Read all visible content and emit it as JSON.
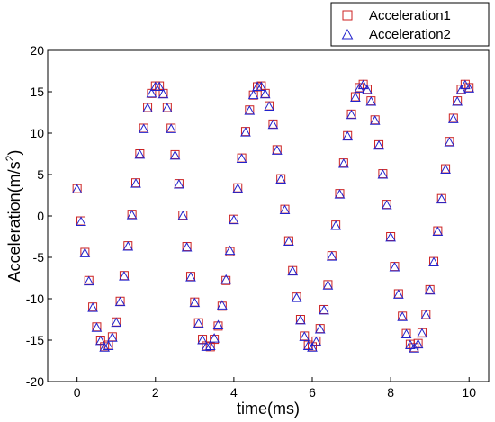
{
  "chart_data": {
    "type": "scatter",
    "title": "",
    "xlabel": "time(ms)",
    "ylabel_base": "Acceleration(m/s",
    "ylabel_sup": "2",
    "ylabel_close": ")",
    "xlim": [
      -0.75,
      10.5
    ],
    "ylim": [
      -20,
      20
    ],
    "xticks": [
      0,
      2,
      4,
      6,
      8,
      10
    ],
    "yticks": [
      -20,
      -15,
      -10,
      -5,
      0,
      5,
      10,
      15,
      20
    ],
    "grid": false,
    "legend_position": "top-right",
    "series": [
      {
        "name": "Acceleration1",
        "marker": "square",
        "color": "#cc2222",
        "x": [
          0.0,
          0.1,
          0.2,
          0.3,
          0.4,
          0.5,
          0.6,
          0.7,
          0.8,
          0.9,
          1.0,
          1.1,
          1.2,
          1.3,
          1.4,
          1.5,
          1.6,
          1.7,
          1.8,
          1.9,
          2.0,
          2.1,
          2.2,
          2.3,
          2.4,
          2.5,
          2.6,
          2.7,
          2.8,
          2.9,
          3.0,
          3.1,
          3.2,
          3.3,
          3.4,
          3.5,
          3.6,
          3.7,
          3.8,
          3.9,
          4.0,
          4.1,
          4.2,
          4.3,
          4.4,
          4.5,
          4.6,
          4.7,
          4.8,
          4.9,
          5.0,
          5.1,
          5.2,
          5.3,
          5.4,
          5.5,
          5.6,
          5.7,
          5.8,
          5.9,
          6.0,
          6.1,
          6.2,
          6.3,
          6.4,
          6.5,
          6.6,
          6.7,
          6.8,
          6.9,
          7.0,
          7.1,
          7.2,
          7.3,
          7.4,
          7.5,
          7.6,
          7.7,
          7.8,
          7.9,
          8.0,
          8.1,
          8.2,
          8.3,
          8.4,
          8.5,
          8.6,
          8.7,
          8.8,
          8.9,
          9.0,
          9.1,
          9.2,
          9.3,
          9.4,
          9.5,
          9.6,
          9.7,
          9.8,
          9.9,
          10.0
        ],
        "y": [
          3.3,
          -0.6,
          -4.4,
          -7.8,
          -11.0,
          -13.4,
          -15.0,
          -15.8,
          -15.6,
          -14.6,
          -12.8,
          -10.3,
          -7.2,
          -3.6,
          0.2,
          4.0,
          7.5,
          10.6,
          13.1,
          14.8,
          15.7,
          15.7,
          14.8,
          13.1,
          10.6,
          7.4,
          3.9,
          0.1,
          -3.7,
          -7.3,
          -10.4,
          -12.9,
          -14.9,
          -15.7,
          -15.8,
          -14.9,
          -13.3,
          -10.9,
          -7.8,
          -4.3,
          -0.4,
          3.4,
          7.0,
          10.2,
          12.8,
          14.6,
          15.6,
          15.7,
          14.8,
          13.3,
          11.1,
          8.0,
          4.5,
          0.8,
          -3.0,
          -6.6,
          -9.8,
          -12.5,
          -14.5,
          -15.6,
          -15.8,
          -15.1,
          -13.6,
          -11.3,
          -8.3,
          -4.8,
          -1.1,
          2.7,
          6.4,
          9.7,
          12.3,
          14.4,
          15.5,
          15.9,
          15.3,
          13.9,
          11.6,
          8.6,
          5.1,
          1.4,
          -2.5,
          -6.1,
          -9.4,
          -12.1,
          -14.2,
          -15.5,
          -15.9,
          -15.4,
          -14.1,
          -11.9,
          -8.9,
          -5.5,
          -1.8,
          2.1,
          5.7,
          9.0,
          11.8,
          13.9,
          15.3,
          15.9,
          15.5
        ]
      },
      {
        "name": "Acceleration2",
        "marker": "triangle",
        "color": "#2222cc",
        "x": [
          0.0,
          0.1,
          0.2,
          0.3,
          0.4,
          0.5,
          0.6,
          0.7,
          0.8,
          0.9,
          1.0,
          1.1,
          1.2,
          1.3,
          1.4,
          1.5,
          1.6,
          1.7,
          1.8,
          1.9,
          2.0,
          2.1,
          2.2,
          2.3,
          2.4,
          2.5,
          2.6,
          2.7,
          2.8,
          2.9,
          3.0,
          3.1,
          3.2,
          3.3,
          3.4,
          3.5,
          3.6,
          3.7,
          3.8,
          3.9,
          4.0,
          4.1,
          4.2,
          4.3,
          4.4,
          4.5,
          4.6,
          4.7,
          4.8,
          4.9,
          5.0,
          5.1,
          5.2,
          5.3,
          5.4,
          5.5,
          5.6,
          5.7,
          5.8,
          5.9,
          6.0,
          6.1,
          6.2,
          6.3,
          6.4,
          6.5,
          6.6,
          6.7,
          6.8,
          6.9,
          7.0,
          7.1,
          7.2,
          7.3,
          7.4,
          7.5,
          7.6,
          7.7,
          7.8,
          7.9,
          8.0,
          8.1,
          8.2,
          8.3,
          8.4,
          8.5,
          8.6,
          8.7,
          8.8,
          8.9,
          9.0,
          9.1,
          9.2,
          9.3,
          9.4,
          9.5,
          9.6,
          9.7,
          9.8,
          9.9,
          10.0
        ],
        "y": [
          3.2,
          -0.7,
          -4.5,
          -7.9,
          -11.1,
          -13.5,
          -15.1,
          -15.9,
          -15.7,
          -14.7,
          -12.9,
          -10.4,
          -7.3,
          -3.7,
          0.1,
          3.9,
          7.4,
          10.5,
          13.0,
          14.8,
          15.6,
          15.6,
          14.7,
          13.0,
          10.5,
          7.3,
          3.8,
          0.0,
          -3.8,
          -7.4,
          -10.5,
          -13.0,
          -15.0,
          -15.8,
          -15.7,
          -14.8,
          -13.2,
          -10.8,
          -7.7,
          -4.2,
          -0.5,
          3.3,
          6.9,
          10.1,
          12.7,
          14.6,
          15.6,
          15.6,
          14.7,
          13.2,
          11.0,
          7.9,
          4.4,
          0.7,
          -3.1,
          -6.7,
          -9.9,
          -12.6,
          -14.6,
          -15.7,
          -15.9,
          -15.2,
          -13.7,
          -11.4,
          -8.4,
          -4.9,
          -1.2,
          2.6,
          6.3,
          9.6,
          12.2,
          14.3,
          15.4,
          15.8,
          15.2,
          13.8,
          11.5,
          8.5,
          5.0,
          1.3,
          -2.6,
          -6.2,
          -9.5,
          -12.2,
          -14.3,
          -15.6,
          -16.0,
          -15.5,
          -14.2,
          -12.0,
          -9.0,
          -5.6,
          -1.9,
          2.0,
          5.6,
          8.9,
          11.7,
          13.8,
          15.2,
          15.8,
          15.4
        ]
      }
    ]
  }
}
